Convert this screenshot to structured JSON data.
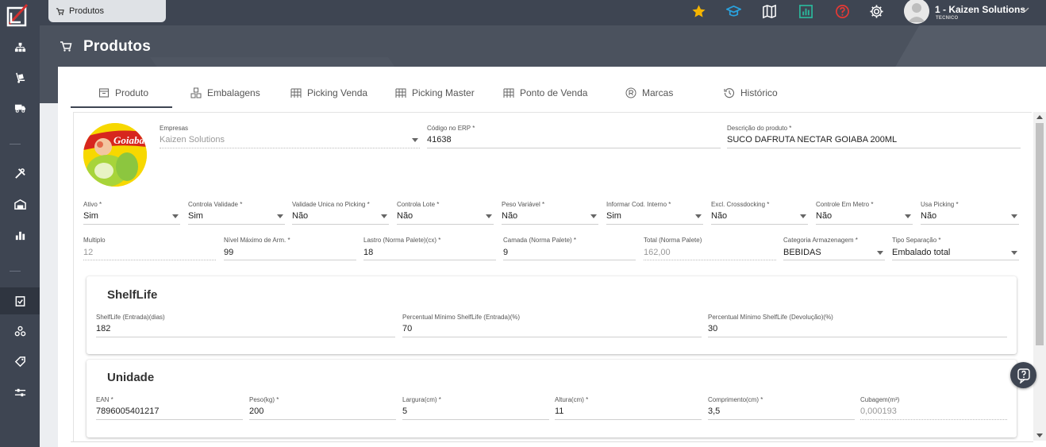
{
  "topbar": {
    "tab_label": "Produtos",
    "user_name": "1 - Kaizen Solutions",
    "user_role": "TECNICO"
  },
  "page": {
    "title": "Produtos"
  },
  "tabs": [
    {
      "label": "Produto"
    },
    {
      "label": "Embalagens"
    },
    {
      "label": "Picking Venda"
    },
    {
      "label": "Picking Master"
    },
    {
      "label": "Ponto de Venda"
    },
    {
      "label": "Marcas"
    },
    {
      "label": "Histórico"
    }
  ],
  "top_fields": {
    "empresas": {
      "label": "Empresas",
      "value": "Kaizen Solutions"
    },
    "codigo_erp": {
      "label": "Código no ERP *",
      "value": "41638"
    },
    "descricao": {
      "label": "Descrição do produto *",
      "value": "SUCO DAFRUTA NECTAR GOIABA 200ML"
    }
  },
  "photo": {
    "brand_text": "Goiaba"
  },
  "row2": [
    {
      "label": "Ativo *",
      "value": "Sim"
    },
    {
      "label": "Controla Validade *",
      "value": "Sim"
    },
    {
      "label": "Validade Unica no Picking *",
      "value": "Não"
    },
    {
      "label": "Controla Lote *",
      "value": "Não"
    },
    {
      "label": "Peso Variável *",
      "value": "Não"
    },
    {
      "label": "Informar Cod. Interno *",
      "value": "Sim"
    },
    {
      "label": "Excl. Crossdocking *",
      "value": "Não"
    },
    {
      "label": "Controle Em Metro *",
      "value": "Não"
    },
    {
      "label": "Usa Picking *",
      "value": "Não"
    }
  ],
  "row3": [
    {
      "label": "Multiplo",
      "value": "12"
    },
    {
      "label": "Nível Máximo de Arm. *",
      "value": "99"
    },
    {
      "label": "Lastro (Norma Palete)(cx) *",
      "value": "18"
    },
    {
      "label": "Camada (Norma Palete) *",
      "value": "9"
    },
    {
      "label": "Total (Norma Palete)",
      "value": "162,00"
    },
    {
      "label": "Categoria Armazenagem *",
      "value": "BEBIDAS"
    },
    {
      "label": "Tipo Separação *",
      "value": "Embalado total"
    }
  ],
  "shelflife": {
    "title": "ShelfLife",
    "fields": [
      {
        "label": "ShelfLife (Entrada)(dias)",
        "value": "182"
      },
      {
        "label": "Percentual Mínimo ShelfLife (Entrada)(%)",
        "value": "70"
      },
      {
        "label": "Percentual Mínimo ShelfLife (Devolução)(%)",
        "value": "30"
      }
    ]
  },
  "unidade": {
    "title": "Unidade",
    "fields": [
      {
        "label": "EAN *",
        "value": "7896005401217"
      },
      {
        "label": "Peso(kg) *",
        "value": "200"
      },
      {
        "label": "Largura(cm) *",
        "value": "5"
      },
      {
        "label": "Altura(cm) *",
        "value": "11"
      },
      {
        "label": "Comprimento(cm) *",
        "value": "3,5"
      },
      {
        "label": "Cubagem(m³)",
        "value": "0,000193"
      }
    ]
  },
  "colors": {
    "rail": "#3e4552",
    "header": "#4b525e",
    "star": "#f5b400",
    "cap": "#29a3e0",
    "report": "#2bb59a",
    "help": "#e53935",
    "logo_red": "#d32f2f"
  }
}
